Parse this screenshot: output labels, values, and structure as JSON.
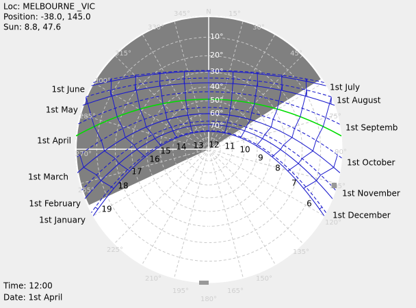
{
  "info": {
    "location": "Loc: MELBOURNE _VIC",
    "position": "Position: -38.0, 145.0",
    "sun": "Sun: 8.8, 47.6"
  },
  "footer": {
    "time": "Time: 12:00",
    "date": "Date: 1st April"
  },
  "azimuth_labels": [
    "N",
    "15°",
    "30°",
    "45°",
    "75°",
    "90°",
    "105°",
    "120°",
    "135°",
    "150°",
    "165°",
    "180°",
    "195°",
    "210°",
    "225°",
    "255°",
    "270°",
    "285°",
    "300°",
    "315°",
    "330°",
    "345°"
  ],
  "altitude_labels": [
    "10°",
    "20°",
    "30°",
    "40°",
    "50°",
    "60°",
    "70°"
  ],
  "month_labels": {
    "left": [
      "1st June",
      "1st May",
      "1st April",
      "1st March",
      "1st February",
      "1st January"
    ],
    "right": [
      "1st July",
      "1st August",
      "1st Septemb",
      "1st October",
      "1st November",
      "1st December"
    ]
  },
  "hour_labels": [
    "6",
    "7",
    "8",
    "9",
    "10",
    "11",
    "12",
    "13",
    "14",
    "15",
    "16",
    "17",
    "18",
    "19"
  ]
}
